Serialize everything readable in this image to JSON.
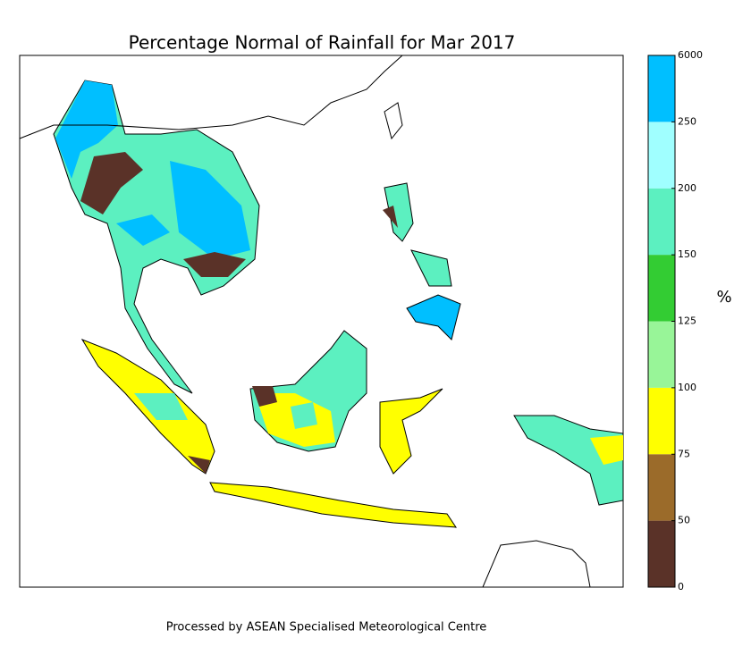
{
  "title": "Percentage Normal of Rainfall for Mar 2017",
  "colorbar": {
    "label": "%",
    "ticks": [
      0,
      50,
      75,
      100,
      125,
      150,
      200,
      250,
      6000
    ],
    "colors": [
      "#5a3228",
      "#9b6b2a",
      "#ffff00",
      "#98f598",
      "#33cc33",
      "#5cf0c0",
      "#a0ffff",
      "#00bfff"
    ]
  },
  "footer": "Processed by ASEAN Specialised Meteorological Centre"
}
